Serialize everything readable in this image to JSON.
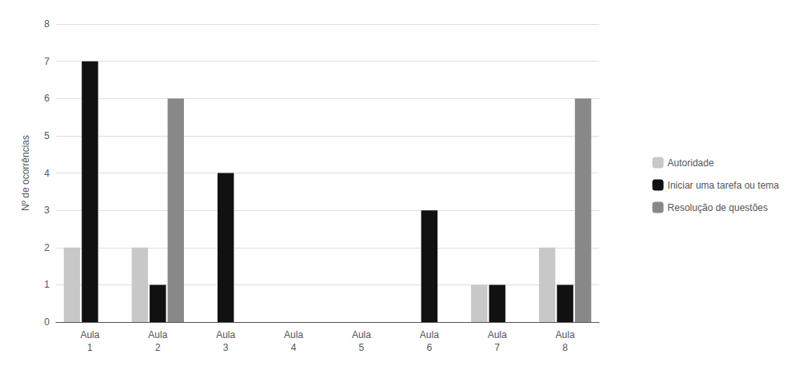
{
  "chart_data": {
    "type": "bar",
    "categories": [
      "Aula\n1",
      "Aula\n2",
      "Aula\n3",
      "Aula\n4",
      "Aula\n5",
      "Aula\n6",
      "Aula\n7",
      "Aula\n8"
    ],
    "series": [
      {
        "name": "Autoridade",
        "color": "#c8c8c8",
        "values": [
          2,
          2,
          0,
          0,
          0,
          0,
          1,
          2
        ]
      },
      {
        "name": "Iniciar uma tarefa ou tema",
        "color": "#111111",
        "values": [
          7,
          1,
          4,
          0,
          0,
          3,
          1,
          1
        ]
      },
      {
        "name": "Resolução de questões",
        "color": "#888888",
        "values": [
          0,
          6,
          0,
          0,
          0,
          0,
          0,
          6
        ]
      }
    ],
    "ylabel": "Nº de ocorrências",
    "ylim": [
      0,
      8
    ],
    "yticks": [
      0,
      1,
      2,
      3,
      4,
      5,
      6,
      7,
      8
    ],
    "grid": true,
    "legend": "right"
  }
}
